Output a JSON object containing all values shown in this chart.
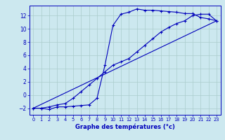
{
  "xlabel": "Graphe des températures (°c)",
  "xlim": [
    -0.5,
    23.5
  ],
  "ylim": [
    -3.0,
    13.5
  ],
  "yticks": [
    -2,
    0,
    2,
    4,
    6,
    8,
    10,
    12
  ],
  "xticks": [
    0,
    1,
    2,
    3,
    4,
    5,
    6,
    7,
    8,
    9,
    10,
    11,
    12,
    13,
    14,
    15,
    16,
    17,
    18,
    19,
    20,
    21,
    22,
    23
  ],
  "background_color": "#cce8ef",
  "grid_color": "#aacccc",
  "line_color": "#0000bb",
  "line1_x": [
    0,
    1,
    2,
    3,
    4,
    5,
    6,
    7,
    8,
    9,
    10,
    11,
    12,
    13,
    14,
    15,
    16,
    17,
    18,
    19,
    20,
    21,
    22,
    23
  ],
  "line1_y": [
    -2.0,
    -2.0,
    -2.2,
    -1.8,
    -1.8,
    -1.7,
    -1.6,
    -1.5,
    -0.5,
    4.5,
    10.5,
    12.2,
    12.5,
    13.0,
    12.8,
    12.8,
    12.7,
    12.6,
    12.5,
    12.3,
    12.3,
    11.7,
    11.5,
    11.2
  ],
  "line2_x": [
    0,
    1,
    2,
    3,
    4,
    5,
    6,
    7,
    8,
    9,
    10,
    11,
    12,
    13,
    14,
    15,
    16,
    17,
    18,
    19,
    20,
    21,
    22,
    23
  ],
  "line2_y": [
    -2.0,
    -2.0,
    -1.8,
    -1.5,
    -1.3,
    -0.5,
    0.5,
    1.5,
    2.5,
    3.5,
    4.5,
    5.0,
    5.5,
    6.5,
    7.5,
    8.5,
    9.5,
    10.2,
    10.8,
    11.2,
    12.0,
    12.2,
    12.2,
    11.2
  ],
  "line3_x": [
    0,
    23
  ],
  "line3_y": [
    -2.0,
    11.2
  ]
}
